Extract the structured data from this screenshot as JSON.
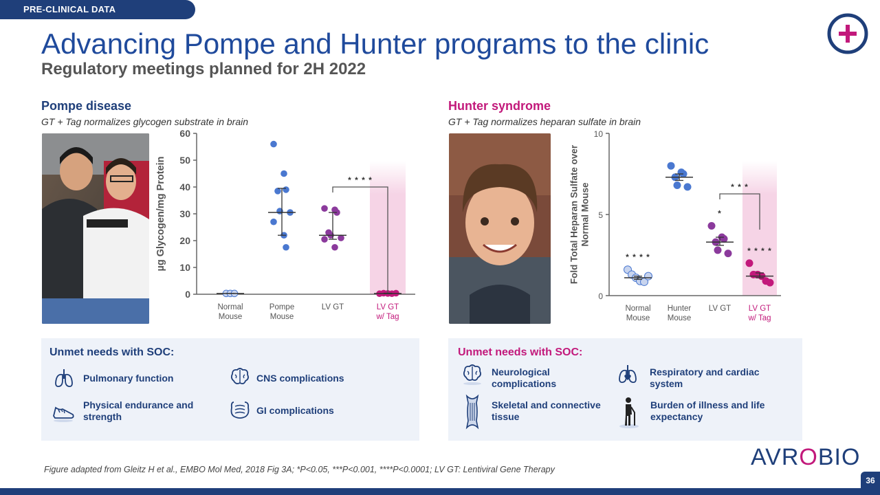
{
  "header": {
    "tag": "PRE-CLINICAL DATA",
    "title": "Advancing Pompe and Hunter programs to the clinic",
    "subtitle": "Regulatory meetings planned for 2H 2022"
  },
  "colors": {
    "navy": "#1f3f7a",
    "magenta": "#c2197b",
    "blue_dot": "#4a78d0",
    "purple_dot": "#8b3a9c",
    "light_dot": "#c8d4ee",
    "highlight": "#f6d4e6"
  },
  "pompe": {
    "title": "Pompe disease",
    "subtitle": "GT + Tag normalizes glycogen substrate in brain",
    "photo_icon": "photo-of-patient-and-parent",
    "unmet_title": "Unmet needs with SOC:",
    "needs": [
      {
        "label": "Pulmonary function",
        "icon": "lungs-icon"
      },
      {
        "label": "CNS complications",
        "icon": "brain-icon"
      },
      {
        "label": "Physical endurance and strength",
        "icon": "shoe-icon"
      },
      {
        "label": "GI complications",
        "icon": "intestine-icon"
      }
    ]
  },
  "hunter": {
    "title": "Hunter syndrome",
    "subtitle": "GT + Tag normalizes heparan sulfate in brain",
    "photo_icon": "photo-of-child",
    "unmet_title": "Unmet needs with SOC:",
    "needs": [
      {
        "label": "Neurological complications",
        "icon": "brain-icon"
      },
      {
        "label": "Respiratory and cardiac system",
        "icon": "lungs-heart-icon"
      },
      {
        "label": "Skeletal and connective tissue",
        "icon": "bone-icon"
      },
      {
        "label": "Burden of illness and life expectancy",
        "icon": "person-cane-icon"
      }
    ]
  },
  "chart_data": [
    {
      "type": "scatter",
      "ylabel": "µg Glycogen/mg Protein",
      "ylim": [
        0,
        60
      ],
      "yticks": [
        "0",
        "10",
        "20",
        "30",
        "40",
        "50",
        "60"
      ],
      "categories": [
        "Normal\nMouse",
        "Pompe\nMouse",
        "LV GT",
        "LV GT\nw/ Tag"
      ],
      "highlight_category": 3,
      "series": [
        {
          "points": [
            0.3,
            0.3,
            0.3
          ],
          "mean": 0.3,
          "err": [
            0.3,
            0.3
          ],
          "color": "light"
        },
        {
          "points": [
            56,
            45,
            39,
            38.5,
            31,
            30.5,
            27,
            22,
            17.5
          ],
          "mean": 30.5,
          "err": [
            22,
            39.5
          ],
          "color": "blue"
        },
        {
          "points": [
            32,
            31.5,
            30.5,
            23,
            22,
            21,
            20.5,
            17.5
          ],
          "mean": 22,
          "err": [
            20.5,
            30.5
          ],
          "color": "purple"
        },
        {
          "points": [
            0.2,
            0.4,
            0.3,
            0.2,
            0.4
          ],
          "mean": 0.3,
          "err": [
            0.2,
            0.4
          ],
          "color": "magenta"
        }
      ],
      "bracket": {
        "from": 2,
        "to": 3,
        "label": "* * * *"
      }
    },
    {
      "type": "scatter",
      "ylabel": "Fold Total Heparan Sulfate over Normal Mouse",
      "ylim": [
        0,
        10
      ],
      "yticks": [
        "0",
        "5",
        "10"
      ],
      "categories": [
        "Normal\nMouse",
        "Hunter\nMouse",
        "LV GT",
        "LV GT\nw/ Tag"
      ],
      "highlight_category": 3,
      "series": [
        {
          "points": [
            1.6,
            1.3,
            1.1,
            0.9,
            0.85,
            1.2
          ],
          "mean": 1.1,
          "err": [
            1.0,
            1.2
          ],
          "color": "light",
          "label": "* * * *"
        },
        {
          "points": [
            8.0,
            7.6,
            7.5,
            7.3,
            6.8,
            6.7
          ],
          "mean": 7.3,
          "err": [
            7.1,
            7.5
          ],
          "color": "blue"
        },
        {
          "points": [
            4.3,
            3.6,
            3.5,
            3.3,
            2.8,
            2.6
          ],
          "mean": 3.3,
          "err": [
            3.1,
            3.6
          ],
          "color": "purple",
          "label": "*"
        },
        {
          "points": [
            2.0,
            1.3,
            1.3,
            1.2,
            0.9,
            0.8
          ],
          "mean": 1.2,
          "err": [
            1.1,
            1.4
          ],
          "color": "magenta",
          "label": "* * * *"
        }
      ],
      "bracket": {
        "from": 2,
        "to": 3,
        "label": "* * *"
      }
    }
  ],
  "footnote": "Figure adapted from Gleitz H et al., EMBO Mol Med, 2018 Fig 3A; *P<0.05, ***P<0.001, ****P<0.0001; LV GT: Lentiviral Gene Therapy",
  "brand": {
    "logo_left": "AVR",
    "logo_o": "O",
    "logo_right": "BIO",
    "page": "36",
    "plus_icon": "plus-circle-icon"
  }
}
